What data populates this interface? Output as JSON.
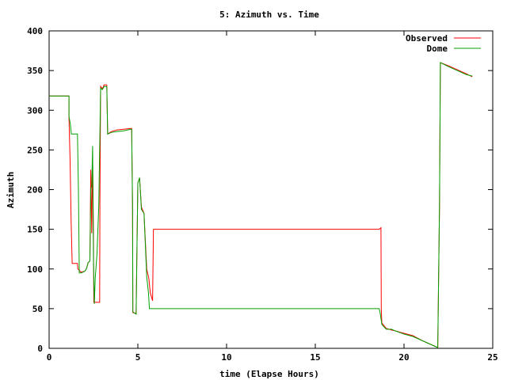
{
  "chart_data": {
    "type": "line",
    "title": "5: Azimuth vs. Time",
    "xlabel": "time (Elapse Hours)",
    "ylabel": "Azimuth",
    "xlim": [
      0,
      25
    ],
    "ylim": [
      0,
      400
    ],
    "xticks": [
      0,
      5,
      10,
      15,
      20,
      25
    ],
    "yticks": [
      0,
      50,
      100,
      150,
      200,
      250,
      300,
      350,
      400
    ],
    "grid": false,
    "legend_position": "top-right",
    "series": [
      {
        "name": "Observed",
        "color": "#ff0000",
        "points": [
          [
            0,
            318
          ],
          [
            1.12,
            318
          ],
          [
            1.12,
            290
          ],
          [
            1.18,
            240
          ],
          [
            1.24,
            160
          ],
          [
            1.3,
            107
          ],
          [
            1.6,
            107
          ],
          [
            1.62,
            100
          ],
          [
            1.8,
            96
          ],
          [
            2.0,
            97
          ],
          [
            2.1,
            100
          ],
          [
            2.2,
            108
          ],
          [
            2.3,
            110
          ],
          [
            2.35,
            225
          ],
          [
            2.4,
            145
          ],
          [
            2.45,
            240
          ],
          [
            2.5,
            140
          ],
          [
            2.52,
            58
          ],
          [
            2.85,
            58
          ],
          [
            2.86,
            180
          ],
          [
            2.9,
            330
          ],
          [
            3.0,
            327
          ],
          [
            3.1,
            332
          ],
          [
            3.25,
            332
          ],
          [
            3.3,
            270
          ],
          [
            3.5,
            273
          ],
          [
            3.8,
            275
          ],
          [
            4.2,
            276
          ],
          [
            4.6,
            277
          ],
          [
            4.65,
            277
          ],
          [
            4.7,
            180
          ],
          [
            4.72,
            45
          ],
          [
            4.9,
            44
          ],
          [
            5.0,
            208
          ],
          [
            5.1,
            215
          ],
          [
            5.2,
            178
          ],
          [
            5.35,
            170
          ],
          [
            5.5,
            100
          ],
          [
            5.62,
            88
          ],
          [
            5.7,
            70
          ],
          [
            5.83,
            60
          ],
          [
            5.88,
            150
          ],
          [
            18.6,
            150
          ],
          [
            18.7,
            152
          ],
          [
            18.72,
            50
          ],
          [
            18.75,
            32
          ],
          [
            19.0,
            25
          ],
          [
            19.3,
            23
          ],
          [
            19.5,
            22
          ],
          [
            20.0,
            19
          ],
          [
            20.5,
            16
          ],
          [
            21.0,
            10
          ],
          [
            21.5,
            5
          ],
          [
            21.9,
            1
          ],
          [
            22.0,
            180
          ],
          [
            22.05,
            360
          ],
          [
            22.5,
            356
          ],
          [
            23.0,
            351
          ],
          [
            23.5,
            346
          ],
          [
            23.85,
            342
          ]
        ]
      },
      {
        "name": "Dome",
        "color": "#00a000",
        "points": [
          [
            0,
            318
          ],
          [
            1.12,
            318
          ],
          [
            1.12,
            292
          ],
          [
            1.2,
            282
          ],
          [
            1.25,
            270
          ],
          [
            1.6,
            270
          ],
          [
            1.65,
            200
          ],
          [
            1.7,
            95
          ],
          [
            1.8,
            95
          ],
          [
            2.0,
            97
          ],
          [
            2.1,
            100
          ],
          [
            2.2,
            108
          ],
          [
            2.3,
            110
          ],
          [
            2.35,
            200
          ],
          [
            2.4,
            205
          ],
          [
            2.45,
            255
          ],
          [
            2.5,
            110
          ],
          [
            2.55,
            56
          ],
          [
            2.6,
            88
          ],
          [
            2.7,
            120
          ],
          [
            2.8,
            180
          ],
          [
            2.9,
            328
          ],
          [
            3.0,
            326
          ],
          [
            3.1,
            330
          ],
          [
            3.25,
            330
          ],
          [
            3.3,
            270
          ],
          [
            3.5,
            272
          ],
          [
            3.8,
            273
          ],
          [
            4.2,
            274
          ],
          [
            4.6,
            276
          ],
          [
            4.65,
            276
          ],
          [
            4.7,
            180
          ],
          [
            4.72,
            46
          ],
          [
            4.9,
            43
          ],
          [
            5.0,
            208
          ],
          [
            5.1,
            215
          ],
          [
            5.2,
            175
          ],
          [
            5.35,
            170
          ],
          [
            5.5,
            90
          ],
          [
            5.6,
            70
          ],
          [
            5.65,
            50
          ],
          [
            18.6,
            50
          ],
          [
            18.65,
            45
          ],
          [
            18.72,
            35
          ],
          [
            18.75,
            30
          ],
          [
            19.0,
            24
          ],
          [
            19.3,
            24
          ],
          [
            19.5,
            22
          ],
          [
            20.0,
            18
          ],
          [
            20.5,
            15
          ],
          [
            21.0,
            10
          ],
          [
            21.5,
            5
          ],
          [
            21.9,
            1
          ],
          [
            22.0,
            180
          ],
          [
            22.05,
            360
          ],
          [
            22.5,
            355
          ],
          [
            23.0,
            350
          ],
          [
            23.5,
            345
          ],
          [
            23.85,
            343
          ]
        ]
      }
    ]
  }
}
